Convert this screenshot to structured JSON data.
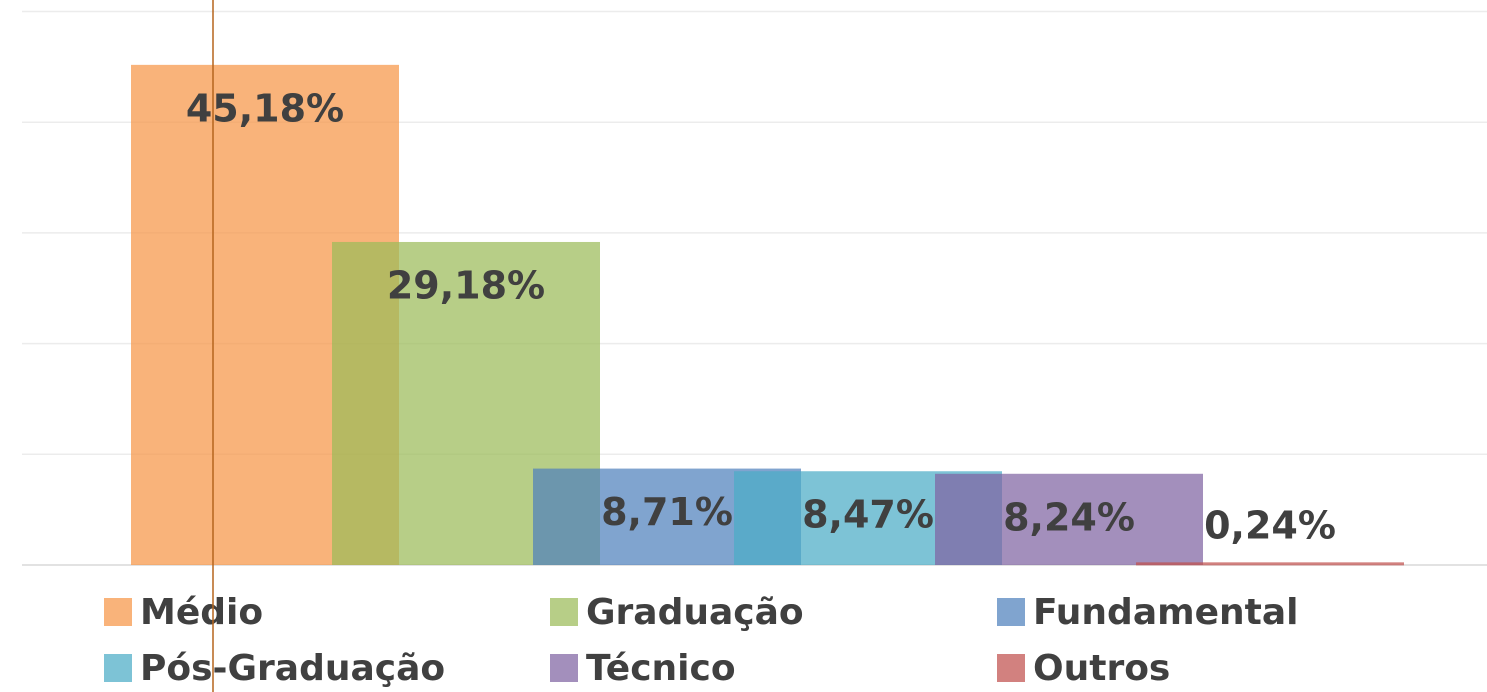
{
  "chart_data": {
    "type": "bar",
    "categories": [
      "Médio",
      "Graduação",
      "Fundamental",
      "Pós-Graduação",
      "Técnico",
      "Outros"
    ],
    "values": [
      45.18,
      29.18,
      8.71,
      8.47,
      8.24,
      0.24
    ],
    "value_labels": [
      "45,18%",
      "29,18%",
      "8,71%",
      "8,47%",
      "8,24%",
      "0,24%"
    ],
    "colors": [
      "#f79646",
      "#9bbb59",
      "#4f81bd",
      "#4bacc6",
      "#8064a2",
      "#c0504d"
    ],
    "ylim": [
      0,
      50
    ],
    "yticks": [
      0,
      10,
      20,
      30,
      40,
      50
    ],
    "grid": true,
    "legend": "bottom"
  }
}
